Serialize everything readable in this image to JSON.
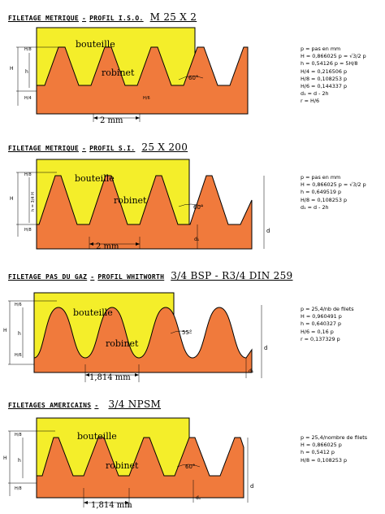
{
  "sections": [
    {
      "title": "FILETAGE METRIQUE",
      "profile": "PROFIL I.S.O.",
      "spec": "M 25 X 2",
      "bouteille": "bouteille",
      "robinet": "robinet",
      "pitch_label": "2 mm",
      "angle_label": "60°",
      "dim_labels": [
        "H",
        "h",
        "H/8",
        "H/4",
        "H/6"
      ],
      "formulas": [
        "p = pas en mm",
        "H = 0,866025 p = √3/2 p",
        "h = 0,54126 p = 5H/8",
        "H/4 = 0,216506 p",
        "H/8 = 0,108253 p",
        "H/6 = 0,144337 p",
        "d₁ = d - 2h",
        "r = H/6"
      ]
    },
    {
      "title": "FILETAGE METRIQUE",
      "profile": "PROFIL S.I.",
      "spec": "25 X 200",
      "bouteille": "bouteille",
      "robinet": "robinet",
      "pitch_label": "2 mm",
      "angle_label": "60°",
      "dim_labels": [
        "H",
        "h = 3/4 H",
        "H/8",
        "H/8",
        "d₁",
        "d"
      ],
      "formulas": [
        "p = pas en mm",
        "H = 0,866025 p = √3/2 p",
        "h = 0,649519 p",
        "H/8 = 0,108253 p",
        "d₁ = d - 2h"
      ]
    },
    {
      "title": "FILETAGE PAS DU GAZ",
      "profile": "PROFIL WHITWORTH",
      "spec": "3/4 BSP - R3/4 DIN 259",
      "bouteille": "bouteille",
      "robinet": "robinet",
      "pitch_label": "1,814 mm",
      "angle_label": "55°",
      "dim_labels": [
        "H",
        "h",
        "H/6",
        "H/6",
        "d₁",
        "d"
      ],
      "formulas": [
        "p = 25,4/nb de filets",
        "H = 0,960491 p",
        "h = 0,640327 p",
        "H/6 = 0,16 p",
        "r = 0,137329 p"
      ]
    },
    {
      "title": "FILETAGES AMERICAINS",
      "profile": "",
      "spec": "3/4 NPSM",
      "bouteille": "bouteille",
      "robinet": "robinet",
      "pitch_label": "1,814 mm",
      "angle_label": "60°",
      "dim_labels": [
        "H",
        "h",
        "H/8",
        "H/8",
        "d₁",
        "d"
      ],
      "formulas": [
        "p = 25,4/nombre de filets",
        "H = 0,866025 p",
        "h = 0,5412 p",
        "H/8 = 0,108253 p"
      ]
    }
  ],
  "colors": {
    "bouteille": "#f4ee2a",
    "robinet": "#f07a3c",
    "outline": "#000000"
  }
}
